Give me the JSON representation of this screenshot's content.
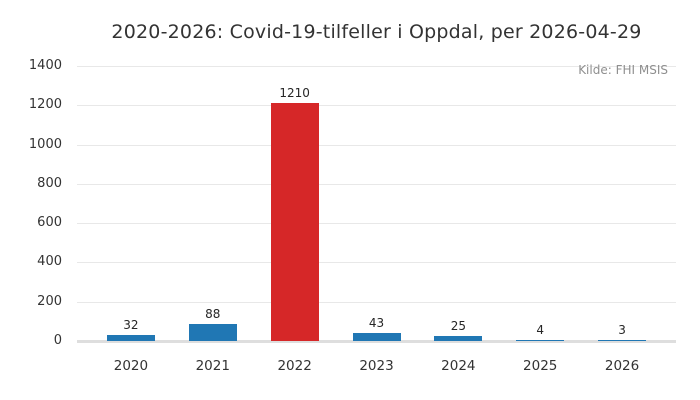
{
  "chart_data": {
    "type": "bar",
    "title": "2020-2026: Covid-19-tilfeller i Oppdal, per 2026-04-29",
    "source": "Kilde: FHI MSIS",
    "categories": [
      "2020",
      "2021",
      "2022",
      "2023",
      "2024",
      "2025",
      "2026"
    ],
    "values": [
      32,
      88,
      1210,
      43,
      25,
      4,
      3
    ],
    "bar_colors": [
      "#2077b4",
      "#2077b4",
      "#d62728",
      "#2077b4",
      "#2077b4",
      "#2077b4",
      "#2077b4"
    ],
    "default_color": "#2077b4",
    "highlight_color": "#d62728",
    "xlabel": "",
    "ylabel": "",
    "ylim": [
      0,
      1400
    ],
    "yticks": [
      0,
      200,
      400,
      600,
      800,
      1000,
      1200,
      1400
    ],
    "grid": "horizontal",
    "gridline_color": "#e8e8e8",
    "baseline_color": "#dedede",
    "legend": "none"
  }
}
